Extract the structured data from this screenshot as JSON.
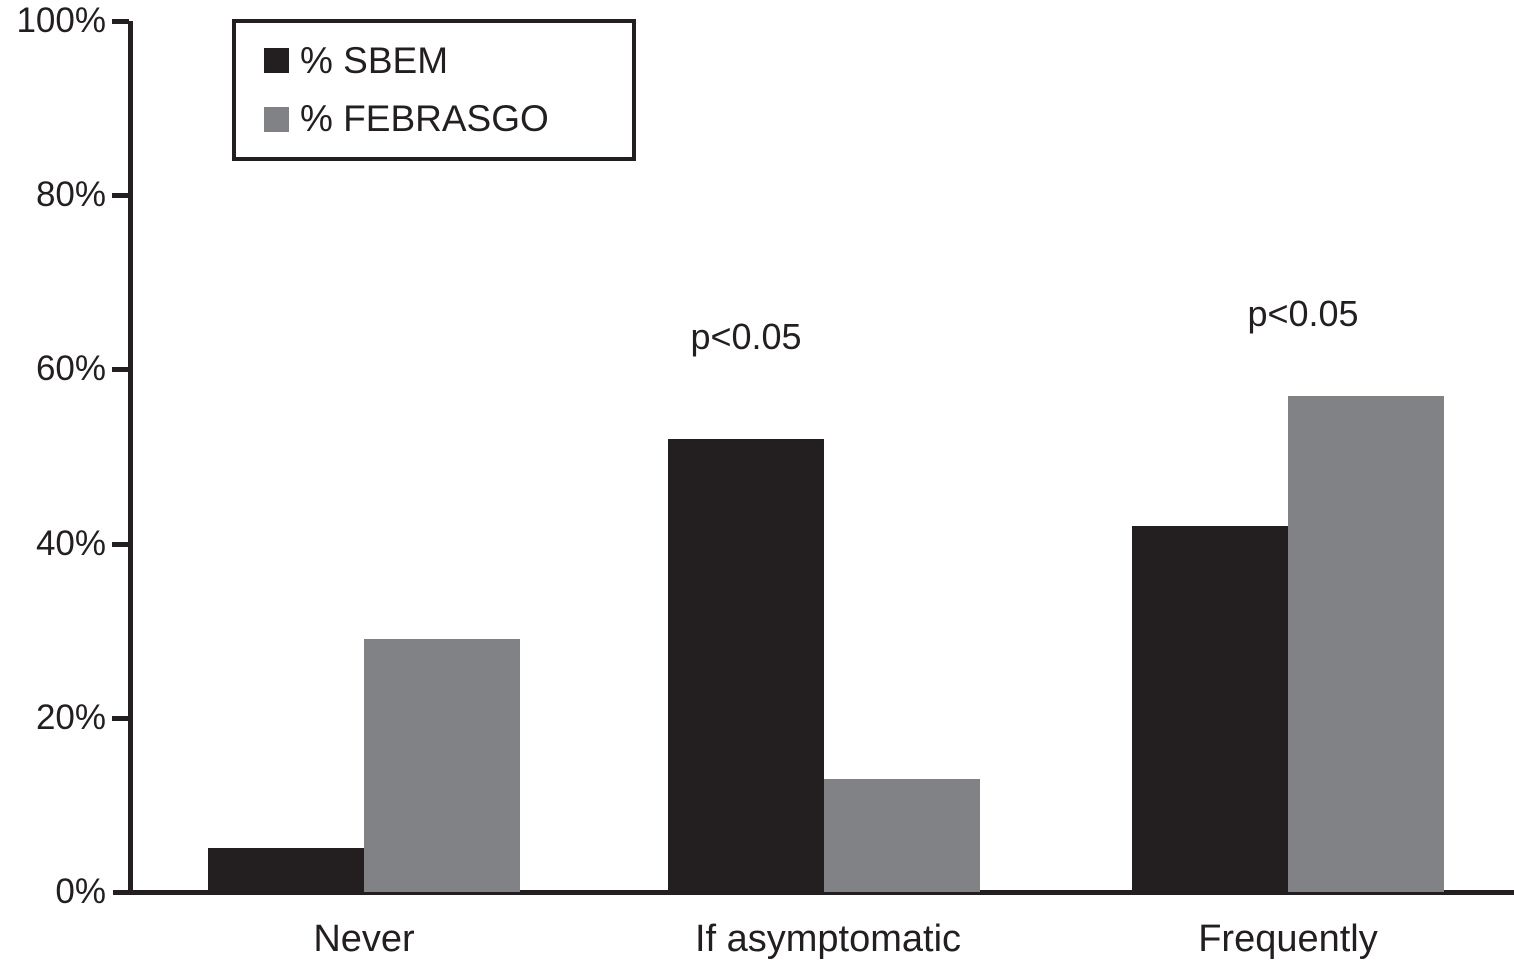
{
  "chart_data": {
    "type": "bar",
    "title": "",
    "xlabel": "",
    "ylabel": "",
    "categories": [
      "Never",
      "If asymptomatic",
      "Frequently"
    ],
    "series": [
      {
        "name": "% SBEM",
        "color": "#231f20",
        "values": [
          5,
          52,
          42
        ]
      },
      {
        "name": "% FEBRASGO",
        "color": "#808285",
        "values": [
          29,
          13,
          57
        ]
      }
    ],
    "ylim": [
      0,
      100
    ],
    "y_ticks": [
      "0%",
      "20%",
      "40%",
      "60%",
      "80%",
      "100%"
    ],
    "grid": false,
    "legend_position": "top-left",
    "annotations": [
      {
        "text": "p<0.05",
        "category": "If asymptomatic"
      },
      {
        "text": "p<0.05",
        "category": "Frequently"
      }
    ]
  }
}
